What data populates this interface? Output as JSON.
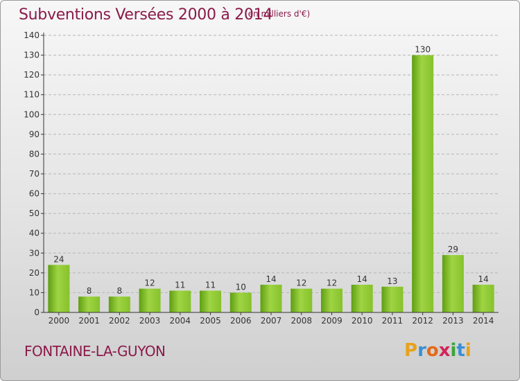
{
  "title": "Subventions Versées 2000 à 2014",
  "subtitle": "(en milliers d'€)",
  "commune": "FONTAINE-LA-GUYON",
  "logo": [
    "P",
    "r",
    "o",
    "x",
    "i",
    "t",
    "i"
  ],
  "colors": {
    "title": "#8a1a4a",
    "bar_light": "#a6d64a",
    "bar_dark": "#5e9e12",
    "axis": "#333333",
    "grid": "#b5b5b5"
  },
  "chart_data": {
    "type": "bar",
    "categories": [
      "2000",
      "2001",
      "2002",
      "2003",
      "2004",
      "2005",
      "2006",
      "2007",
      "2008",
      "2009",
      "2010",
      "2011",
      "2012",
      "2013",
      "2014"
    ],
    "values": [
      24,
      8,
      8,
      12,
      11,
      11,
      10,
      14,
      12,
      12,
      14,
      13,
      130,
      29,
      14
    ],
    "ylim": [
      0,
      140
    ],
    "yticks": [
      0,
      10,
      20,
      30,
      40,
      50,
      60,
      70,
      80,
      90,
      100,
      110,
      120,
      130,
      140
    ],
    "grid": "horizontal dashed",
    "data_labels": true
  }
}
